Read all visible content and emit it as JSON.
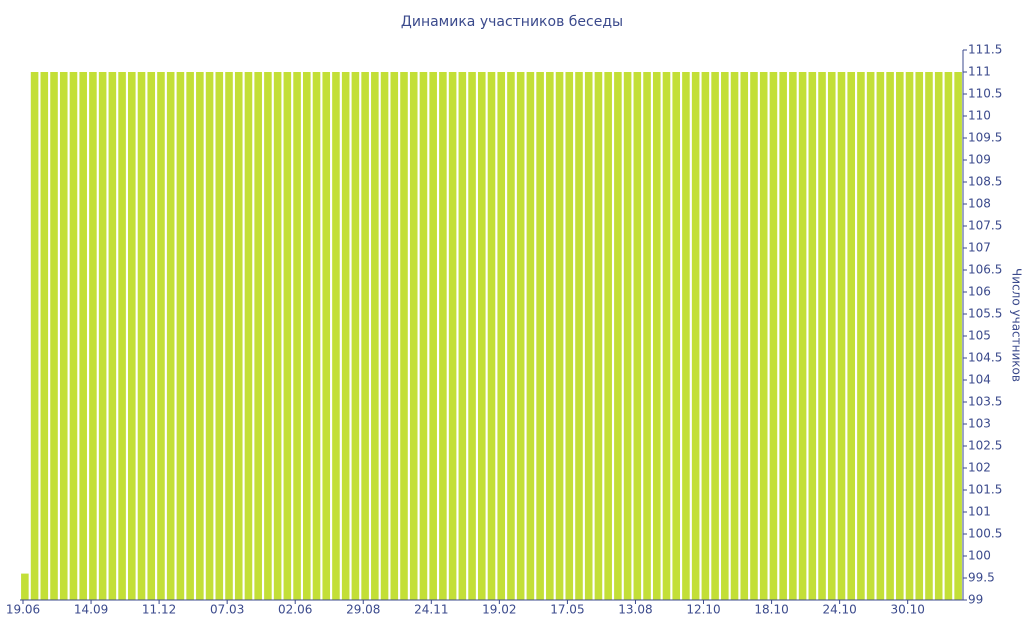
{
  "chart_data": {
    "type": "bar",
    "title": "Динамика участников беседы",
    "y_axis_label": "Число участников",
    "categories": [
      "19.06",
      null,
      null,
      null,
      null,
      null,
      null,
      "14.09",
      null,
      null,
      null,
      null,
      null,
      null,
      "11.12",
      null,
      null,
      null,
      null,
      null,
      null,
      "07.03",
      null,
      null,
      null,
      null,
      null,
      null,
      "02.06",
      null,
      null,
      null,
      null,
      null,
      null,
      "29.08",
      null,
      null,
      null,
      null,
      null,
      null,
      "24.11",
      null,
      null,
      null,
      null,
      null,
      null,
      "19.02",
      null,
      null,
      null,
      null,
      null,
      null,
      "17.05",
      null,
      null,
      null,
      null,
      null,
      null,
      "13.08",
      null,
      null,
      null,
      null,
      null,
      null,
      "12.10",
      null,
      null,
      null,
      null,
      null,
      null,
      "18.10",
      null,
      null,
      null,
      null,
      null,
      null,
      "24.10",
      null,
      null,
      null,
      null,
      null,
      null,
      "30.10",
      null,
      null,
      null,
      null,
      null
    ],
    "values": [
      99.6,
      111,
      111,
      111,
      111,
      111,
      111,
      111,
      111,
      111,
      111,
      111,
      111,
      111,
      111,
      111,
      111,
      111,
      111,
      111,
      111,
      111,
      111,
      111,
      111,
      111,
      111,
      111,
      111,
      111,
      111,
      111,
      111,
      111,
      111,
      111,
      111,
      111,
      111,
      111,
      111,
      111,
      111,
      111,
      111,
      111,
      111,
      111,
      111,
      111,
      111,
      111,
      111,
      111,
      111,
      111,
      111,
      111,
      111,
      111,
      111,
      111,
      111,
      111,
      111,
      111,
      111,
      111,
      111,
      111,
      111,
      111,
      111,
      111,
      111,
      111,
      111,
      111,
      111,
      111,
      111,
      111,
      111,
      111,
      111,
      111,
      111,
      111,
      111,
      111,
      111,
      111,
      111,
      111,
      111,
      111,
      111
    ],
    "color": "#c3df37",
    "axis_side": "right",
    "ylim": [
      99,
      111.5
    ],
    "yticks": [
      99,
      99.5,
      100,
      100.5,
      101,
      101.5,
      102,
      102.5,
      103,
      103.5,
      104,
      104.5,
      105,
      105.5,
      106,
      106.5,
      107,
      107.5,
      108,
      108.5,
      109,
      109.5,
      110,
      110.5,
      111,
      111.5
    ]
  }
}
